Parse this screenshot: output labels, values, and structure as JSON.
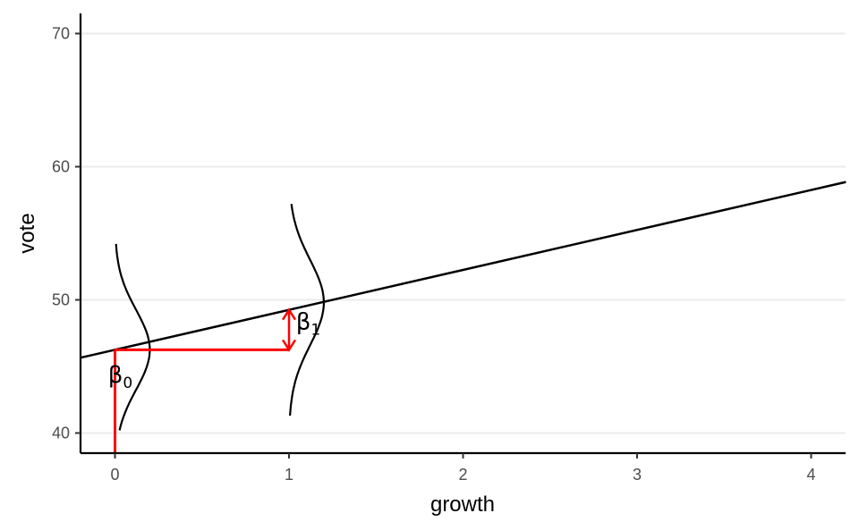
{
  "chart_data": {
    "type": "line",
    "xlabel": "growth",
    "ylabel": "vote",
    "xlim": [
      -0.2,
      4.2
    ],
    "ylim": [
      38.5,
      71.5
    ],
    "x_ticks": [
      0,
      1,
      2,
      3,
      4
    ],
    "y_ticks": [
      40,
      50,
      60,
      70
    ],
    "grid": "horizontal major lines",
    "regression_line": {
      "intercept": 46.25,
      "slope": 3.0,
      "x_range": [
        -0.2,
        4.2
      ]
    },
    "intercept_marker": {
      "x": 0,
      "y_from": 38.5,
      "y_to": 46.25
    },
    "slope_marker": {
      "x_from": 0,
      "x_to": 1,
      "y": 46.25,
      "y_top": 49.25
    },
    "normal_curves": [
      {
        "center_x": 0,
        "mean": 46.25,
        "sd": 3.0,
        "y_range": [
          40.2,
          54.2
        ],
        "peak_width": 0.2
      },
      {
        "center_x": 1,
        "mean": 49.8,
        "sd": 3.2,
        "y_range": [
          41.3,
          57.2
        ],
        "peak_width": 0.2
      }
    ],
    "annotations": [
      {
        "symbol": "β",
        "subscript": "0",
        "x": -0.04,
        "y": 43.8
      },
      {
        "symbol": "β",
        "subscript": "1",
        "x": 1.04,
        "y": 47.8
      }
    ]
  },
  "colors": {
    "line": "#000000",
    "marker": "#ff0000",
    "grid": "#ebebeb",
    "axis": "#000000"
  }
}
